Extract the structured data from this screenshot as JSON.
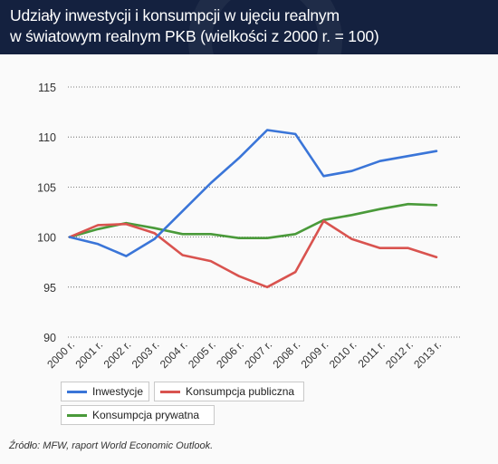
{
  "header": {
    "title_line1": "Udziały inwestycji i konsumpcji w ujęciu realnym",
    "title_line2": "w światowym realnym PKB (wielkości z 2000 r. = 100)"
  },
  "chart_data": {
    "type": "line",
    "x": [
      "2000 r.",
      "2001 r.",
      "2002 r.",
      "2003 r.",
      "2004 r.",
      "2005 r.",
      "2006 r.",
      "2007 r.",
      "2008 r.",
      "2009 r.",
      "2010 r.",
      "2011 r.",
      "2012 r.",
      "2013 r."
    ],
    "ylim": [
      90,
      115
    ],
    "yticks": [
      90,
      95,
      100,
      105,
      110,
      115
    ],
    "grid": true,
    "legend_position": "bottom-left",
    "series": [
      {
        "name": "Inwestycje",
        "color": "#3a75d8",
        "values": [
          100,
          99.3,
          98.1,
          99.8,
          102.6,
          105.4,
          107.9,
          110.7,
          110.3,
          106.1,
          106.6,
          107.6,
          108.1,
          108.6
        ]
      },
      {
        "name": "Konsumpcja publiczna",
        "color": "#d9534f",
        "values": [
          100,
          101.2,
          101.3,
          100.4,
          98.2,
          97.6,
          96.1,
          95.0,
          96.5,
          101.6,
          99.8,
          98.9,
          98.9,
          98.0
        ]
      },
      {
        "name": "Konsumpcja prywatna",
        "color": "#4a9a3a",
        "values": [
          100,
          100.8,
          101.4,
          100.9,
          100.3,
          100.3,
          99.9,
          99.9,
          100.3,
          101.7,
          102.2,
          102.8,
          103.3,
          103.2
        ]
      }
    ]
  },
  "source": "Źródło: MFW, raport World Economic Outlook."
}
